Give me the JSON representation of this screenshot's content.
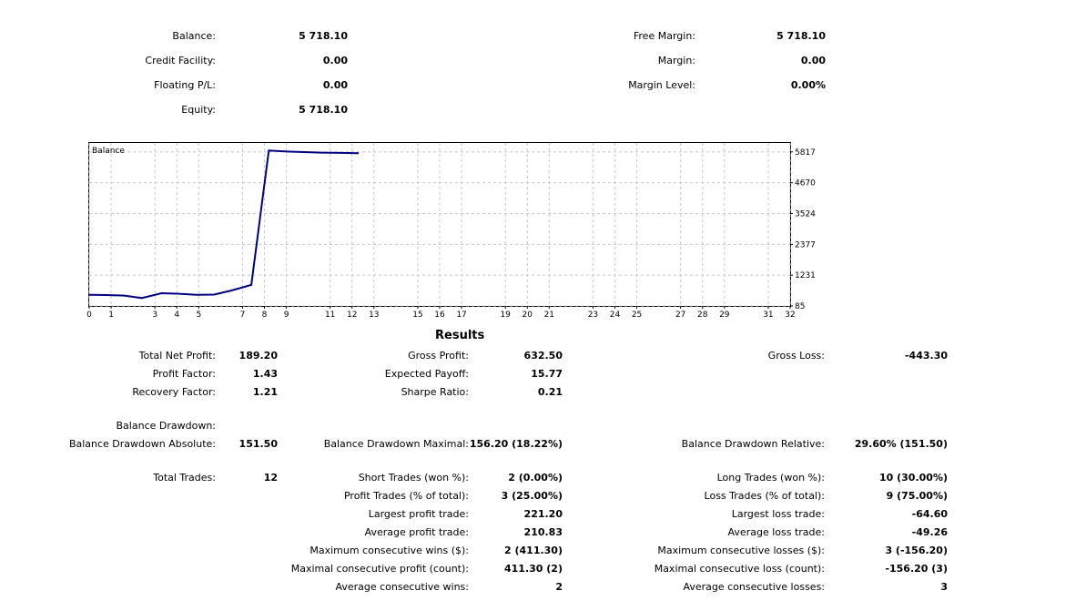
{
  "account": {
    "balance_label": "Balance:",
    "balance_value": "5 718.10",
    "credit_label": "Credit Facility:",
    "credit_value": "0.00",
    "floating_label": "Floating P/L:",
    "floating_value": "0.00",
    "equity_label": "Equity:",
    "equity_value": "5 718.10",
    "free_margin_label": "Free Margin:",
    "free_margin_value": "5 718.10",
    "margin_label": "Margin:",
    "margin_value": "0.00",
    "margin_level_label": "Margin Level:",
    "margin_level_value": "0.00%"
  },
  "chart_data": {
    "type": "line",
    "title": "Balance",
    "x_ticks": [
      0,
      1,
      3,
      4,
      5,
      7,
      8,
      9,
      11,
      12,
      13,
      15,
      16,
      17,
      19,
      20,
      21,
      23,
      24,
      25,
      27,
      28,
      29,
      31,
      32
    ],
    "y_ticks": [
      "5817",
      "4670",
      "3524",
      "2377",
      "1231",
      "85"
    ],
    "ylim": [
      85,
      6150
    ],
    "xlim": [
      0,
      32
    ],
    "grid": true,
    "series": [
      {
        "color": "#000080",
        "x": [
          0,
          0.8,
          1.6,
          2.4,
          3.3,
          4.1,
          4.9,
          5.7,
          6.5,
          7.4,
          8.2,
          9.0,
          9.8,
          10.6,
          11.5,
          12.3
        ],
        "values": [
          500,
          490,
          470,
          380,
          560,
          540,
          500,
          510,
          660,
          870,
          5870,
          5830,
          5810,
          5790,
          5780,
          5770
        ]
      }
    ]
  },
  "results": {
    "title": "Results",
    "total_net_profit_label": "Total Net Profit:",
    "total_net_profit_value": "189.20",
    "gross_profit_label": "Gross Profit:",
    "gross_profit_value": "632.50",
    "gross_loss_label": "Gross Loss:",
    "gross_loss_value": "-443.30",
    "profit_factor_label": "Profit Factor:",
    "profit_factor_value": "1.43",
    "expected_payoff_label": "Expected Payoff:",
    "expected_payoff_value": "15.77",
    "recovery_factor_label": "Recovery Factor:",
    "recovery_factor_value": "1.21",
    "sharpe_ratio_label": "Sharpe Ratio:",
    "sharpe_ratio_value": "0.21",
    "balance_drawdown_label": "Balance Drawdown:",
    "bd_absolute_label": "Balance Drawdown Absolute:",
    "bd_absolute_value": "151.50",
    "bd_maximal_label": "Balance Drawdown Maximal:",
    "bd_maximal_value": "156.20 (18.22%)",
    "bd_relative_label": "Balance Drawdown Relative:",
    "bd_relative_value": "29.60% (151.50)",
    "total_trades_label": "Total Trades:",
    "total_trades_value": "12",
    "short_trades_label": "Short Trades (won %):",
    "short_trades_value": "2 (0.00%)",
    "long_trades_label": "Long Trades (won %):",
    "long_trades_value": "10 (30.00%)",
    "profit_trades_label": "Profit Trades (% of total):",
    "profit_trades_value": "3 (25.00%)",
    "loss_trades_label": "Loss Trades (% of total):",
    "loss_trades_value": "9 (75.00%)",
    "largest_profit_label": "Largest profit trade:",
    "largest_profit_value": "221.20",
    "largest_loss_label": "Largest loss trade:",
    "largest_loss_value": "-64.60",
    "average_profit_label": "Average profit trade:",
    "average_profit_value": "210.83",
    "average_loss_label": "Average loss trade:",
    "average_loss_value": "-49.26",
    "max_cons_wins_label": "Maximum consecutive wins ($):",
    "max_cons_wins_value": "2 (411.30)",
    "max_cons_losses_label": "Maximum consecutive losses ($):",
    "max_cons_losses_value": "3 (-156.20)",
    "maximal_cons_profit_label": "Maximal consecutive profit (count):",
    "maximal_cons_profit_value": "411.30 (2)",
    "maximal_cons_loss_label": "Maximal consecutive loss (count):",
    "maximal_cons_loss_value": "-156.20 (3)",
    "avg_cons_wins_label": "Average consecutive wins:",
    "avg_cons_wins_value": "2",
    "avg_cons_losses_label": "Average consecutive losses:",
    "avg_cons_losses_value": "3"
  }
}
